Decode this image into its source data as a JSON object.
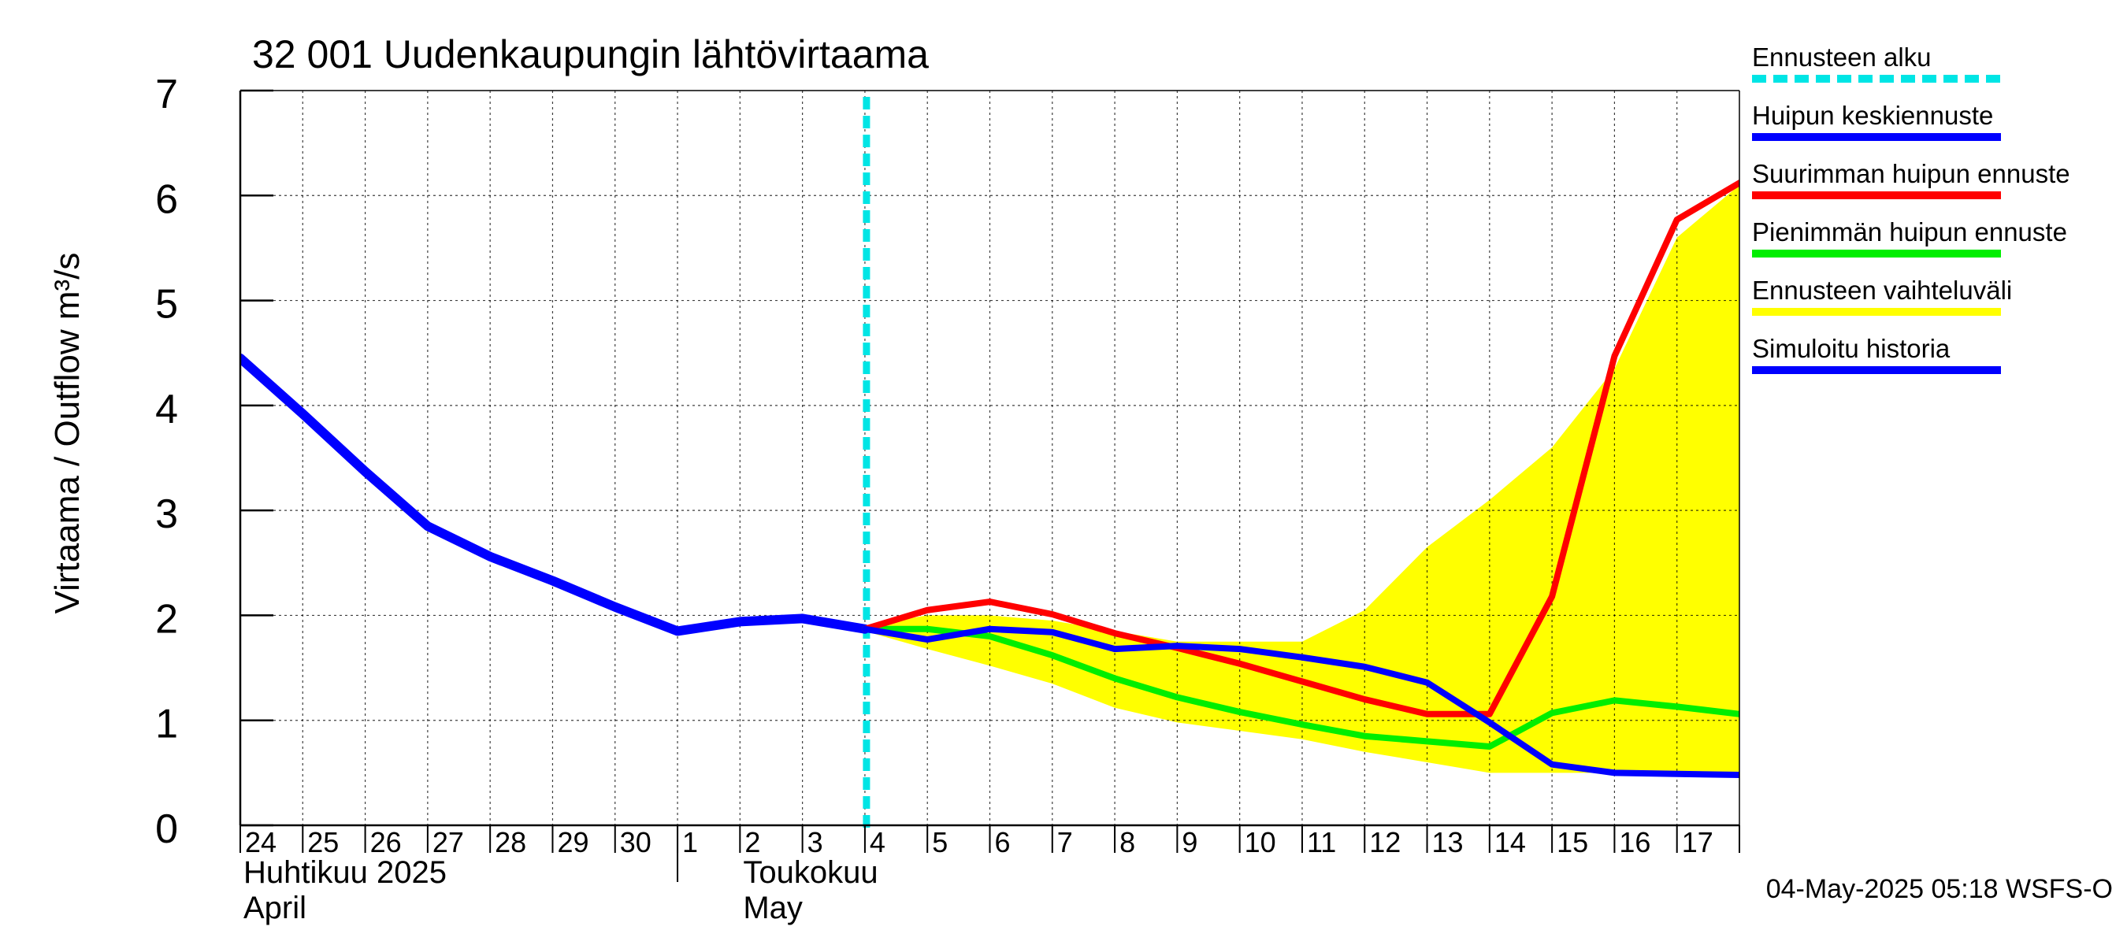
{
  "chart_data": {
    "type": "line",
    "title": "32 001 Uudenkaupungin lähtövirtaama",
    "ylabel": "Virtaama / Outflow    m³/s",
    "ylim": [
      0,
      7
    ],
    "yticks": [
      0,
      1,
      2,
      3,
      4,
      5,
      6,
      7
    ],
    "xlim": [
      0,
      24
    ],
    "x_tick_labels": [
      {
        "x": 0,
        "label": "24"
      },
      {
        "x": 1,
        "label": "25"
      },
      {
        "x": 2,
        "label": "26"
      },
      {
        "x": 3,
        "label": "27"
      },
      {
        "x": 4,
        "label": "28"
      },
      {
        "x": 5,
        "label": "29"
      },
      {
        "x": 6,
        "label": "30"
      },
      {
        "x": 7,
        "label": "1"
      },
      {
        "x": 8,
        "label": "2"
      },
      {
        "x": 9,
        "label": "3"
      },
      {
        "x": 10,
        "label": "4"
      },
      {
        "x": 11,
        "label": "5"
      },
      {
        "x": 12,
        "label": "6"
      },
      {
        "x": 13,
        "label": "7"
      },
      {
        "x": 14,
        "label": "8"
      },
      {
        "x": 15,
        "label": "9"
      },
      {
        "x": 16,
        "label": "10"
      },
      {
        "x": 17,
        "label": "11"
      },
      {
        "x": 18,
        "label": "12"
      },
      {
        "x": 19,
        "label": "13"
      },
      {
        "x": 20,
        "label": "14"
      },
      {
        "x": 21,
        "label": "15"
      },
      {
        "x": 22,
        "label": "16"
      },
      {
        "x": 23,
        "label": "17"
      }
    ],
    "month_labels": [
      {
        "x": 0,
        "line1": "Huhtikuu  2025",
        "line2": "April"
      },
      {
        "x": 8,
        "line1": "Toukokuu",
        "line2": "May"
      }
    ],
    "month_boundary_x": 7,
    "forecast_start_x": 10,
    "grid": true,
    "legend_position": "right",
    "legend": [
      {
        "label": "Ennusteen alku",
        "color": "#00e5e5",
        "style": "dashed"
      },
      {
        "label": "Huipun keskiennuste",
        "color": "#0000ff",
        "style": "solid"
      },
      {
        "label": "Suurimman huipun ennuste",
        "color": "#ff0000",
        "style": "solid"
      },
      {
        "label": "Pienimmän huipun ennuste",
        "color": "#00ee00",
        "style": "solid"
      },
      {
        "label": "Ennusteen vaihteluväli",
        "color": "#ffff00",
        "style": "solid"
      },
      {
        "label": "Simuloitu historia",
        "color": "#0000ff",
        "style": "solid"
      }
    ],
    "series": [
      {
        "name": "Ennusteen vaihteluväli",
        "kind": "band",
        "color": "#ffff00",
        "x": [
          9.5,
          10,
          11,
          12,
          13,
          14,
          15,
          16,
          17,
          18,
          19,
          20,
          21,
          22,
          23,
          24
        ],
        "upper": [
          1.95,
          1.9,
          2.0,
          2.0,
          1.95,
          1.85,
          1.75,
          1.75,
          1.75,
          2.05,
          2.65,
          3.1,
          3.6,
          4.35,
          5.6,
          6.1
        ],
        "lower": [
          1.95,
          1.85,
          1.68,
          1.52,
          1.35,
          1.12,
          0.98,
          0.9,
          0.82,
          0.7,
          0.6,
          0.5,
          0.5,
          0.5,
          0.5,
          0.5
        ]
      },
      {
        "name": "Simuloitu historia",
        "color": "#0000ff",
        "width": 12,
        "x": [
          0,
          1,
          2,
          3,
          4,
          5,
          6,
          7,
          8,
          9,
          10
        ],
        "values": [
          4.45,
          3.92,
          3.37,
          2.85,
          2.56,
          2.33,
          2.08,
          1.85,
          1.94,
          1.97,
          1.87
        ]
      },
      {
        "name": "Pienimmän huipun ennuste",
        "color": "#00ee00",
        "width": 8,
        "x": [
          10,
          11,
          12,
          13,
          14,
          15,
          16,
          17,
          18,
          19,
          20,
          21,
          22,
          23,
          24
        ],
        "values": [
          1.87,
          1.87,
          1.8,
          1.62,
          1.4,
          1.22,
          1.08,
          0.96,
          0.85,
          0.8,
          0.75,
          1.07,
          1.19,
          1.13,
          1.06
        ]
      },
      {
        "name": "Suurimman huipun ennuste",
        "color": "#ff0000",
        "width": 8,
        "x": [
          10,
          11,
          12,
          13,
          14,
          15,
          16,
          17,
          18,
          19,
          20,
          21,
          22,
          23,
          24
        ],
        "values": [
          1.87,
          2.05,
          2.13,
          2.01,
          1.83,
          1.69,
          1.54,
          1.37,
          1.2,
          1.06,
          1.06,
          2.18,
          4.47,
          5.77,
          6.12
        ]
      },
      {
        "name": "Huipun keskiennuste",
        "color": "#0000ff",
        "width": 8,
        "x": [
          10,
          11,
          12,
          13,
          14,
          15,
          16,
          17,
          18,
          19,
          20,
          21,
          22,
          23,
          24
        ],
        "values": [
          1.87,
          1.77,
          1.87,
          1.84,
          1.68,
          1.71,
          1.68,
          1.6,
          1.51,
          1.36,
          0.98,
          0.58,
          0.5,
          0.49,
          0.48
        ]
      }
    ]
  },
  "footer": {
    "timestamp": "04-May-2025 05:18 WSFS-O"
  }
}
